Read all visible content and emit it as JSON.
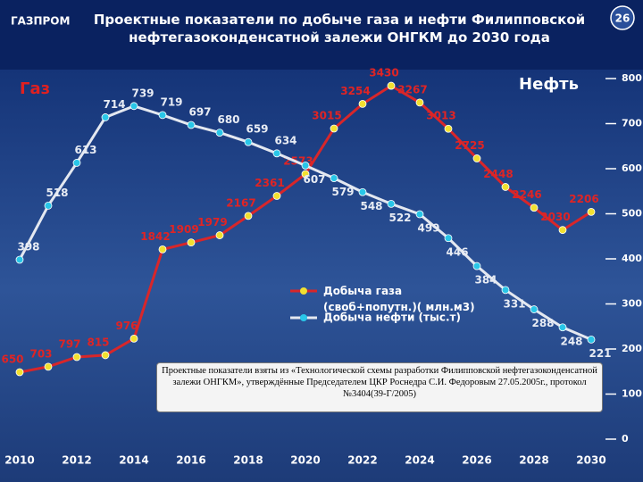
{
  "logo": "ГАЗПРОМ",
  "page_number": "26",
  "note": "Проектные показатели взяты из «Технологической схемы разработки Филипповской нефтегазоконденсатной залежи ОНГКМ», утверждённые Председателем ЦКР Роснедра С.И. Федоровым 27.05.2005г., протокол №3404(39-Г/2005)",
  "chart_data": {
    "type": "line",
    "title": "Проектные показатели по добыче газа и нефти Филипповской нефтегазоконденсатной залежи ОНГКМ до 2030 года",
    "y_label": "Газ",
    "y2_label": "Нефть",
    "x": [
      2010,
      2011,
      2012,
      2013,
      2014,
      2015,
      2016,
      2017,
      2018,
      2019,
      2020,
      2021,
      2022,
      2023,
      2024,
      2025,
      2026,
      2027,
      2028,
      2029,
      2030
    ],
    "xlim": [
      2010,
      2030
    ],
    "xticks": [
      2010,
      2012,
      2014,
      2016,
      2018,
      2020,
      2022,
      2024,
      2026,
      2028,
      2030
    ],
    "ylim": [
      0,
      3500
    ],
    "y2lim": [
      0,
      800
    ],
    "y2ticks": [
      0,
      100,
      200,
      300,
      400,
      500,
      600,
      700,
      800
    ],
    "series": [
      {
        "name": "Добыча газа (своб+попутн.)( млн.м3)",
        "color": "#d8262a",
        "marker_color": "#f2e030",
        "axis": "y",
        "values": [
          650,
          703,
          797,
          815,
          976,
          1842,
          1909,
          1979,
          2167,
          2361,
          2573,
          3015,
          3254,
          3430,
          3267,
          3013,
          2725,
          2448,
          2246,
          2030,
          2206
        ]
      },
      {
        "name": "Добыча нефти (тыс.т)",
        "color": "#e4e8f0",
        "marker_color": "#29c6e8",
        "axis": "y2",
        "values": [
          398,
          518,
          613,
          714,
          739,
          719,
          697,
          680,
          659,
          634,
          607,
          579,
          548,
          522,
          499,
          446,
          384,
          331,
          288,
          248,
          221
        ]
      }
    ]
  }
}
